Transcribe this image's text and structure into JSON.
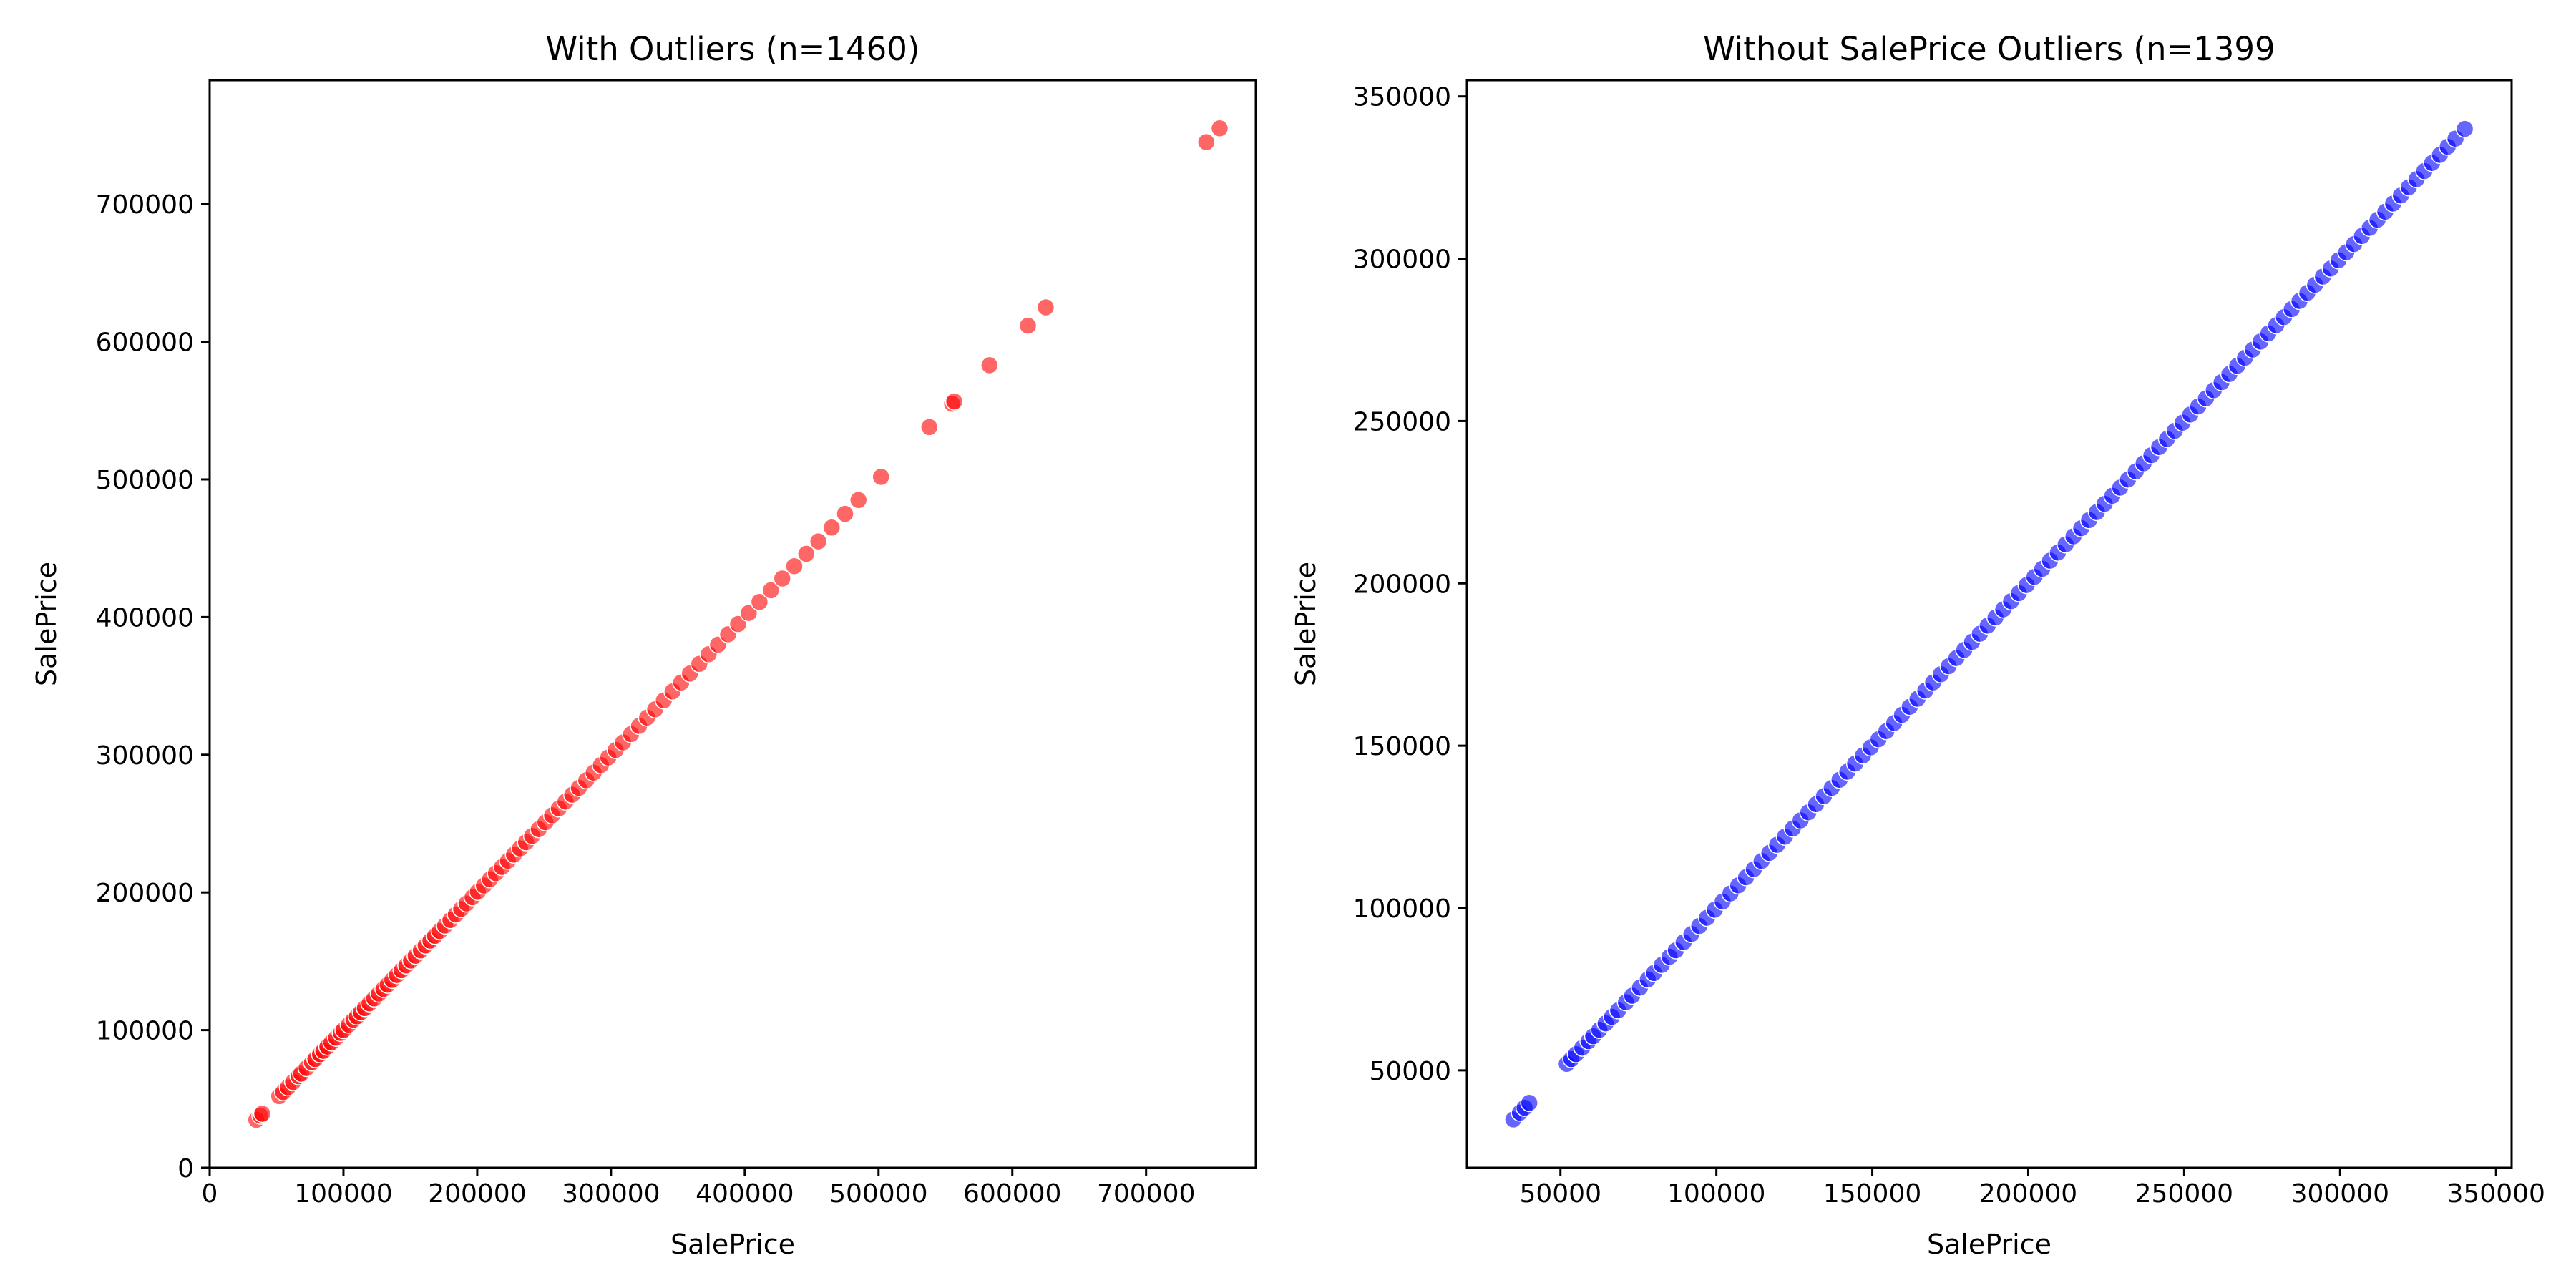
{
  "chart_data": [
    {
      "type": "scatter",
      "title": "With Outliers (n=1460)",
      "xlabel": "SalePrice",
      "ylabel": "SalePrice",
      "xlim": [
        0,
        782000
      ],
      "ylim": [
        0,
        790000
      ],
      "xticks": [
        0,
        100000,
        200000,
        300000,
        400000,
        500000,
        600000,
        700000
      ],
      "yticks": [
        0,
        100000,
        200000,
        300000,
        400000,
        500000,
        600000,
        700000
      ],
      "xtick_labels": [
        "0",
        "100000",
        "200000",
        "300000",
        "400000",
        "500000",
        "600000",
        "700000"
      ],
      "ytick_labels": [
        "0",
        "100000",
        "200000",
        "300000",
        "400000",
        "500000",
        "600000",
        "700000"
      ],
      "color": "#ff0000",
      "series": [
        {
          "x": [
            34900,
            37900,
            39300,
            52000,
            55000,
            58500,
            62383,
            66500,
            68400,
            72500,
            76500,
            79000,
            82500,
            85000,
            88000,
            91000,
            94500,
            98000,
            100000,
            104000,
            107500,
            110000,
            113000,
            116000,
            119500,
            123000,
            126500,
            129900,
            133000,
            136500,
            140000,
            143500,
            147000,
            150500,
            154000,
            157900,
            161500,
            165000,
            168500,
            172000,
            176000,
            180000,
            184000,
            188000,
            192000,
            196500,
            200500,
            205000,
            209500,
            214000,
            218500,
            223000,
            227500,
            232000,
            236500,
            241000,
            246000,
            251000,
            256000,
            261000,
            266000,
            271000,
            276000,
            281500,
            287000,
            292500,
            298000,
            303500,
            309000,
            315000,
            321000,
            327000,
            333000,
            339500,
            346000,
            352500,
            359000,
            366000,
            373000,
            380000,
            387500,
            395000,
            403000,
            411000,
            419500,
            428000,
            437000,
            446000,
            455000,
            465000,
            475000,
            485000,
            501837,
            538000,
            555000,
            556581,
            582933,
            611657,
            625000,
            745000,
            755000
          ],
          "y": [
            34900,
            37900,
            39300,
            52000,
            55000,
            58500,
            62383,
            66500,
            68400,
            72500,
            76500,
            79000,
            82500,
            85000,
            88000,
            91000,
            94500,
            98000,
            100000,
            104000,
            107500,
            110000,
            113000,
            116000,
            119500,
            123000,
            126500,
            129900,
            133000,
            136500,
            140000,
            143500,
            147000,
            150500,
            154000,
            157900,
            161500,
            165000,
            168500,
            172000,
            176000,
            180000,
            184000,
            188000,
            192000,
            196500,
            200500,
            205000,
            209500,
            214000,
            218500,
            223000,
            227500,
            232000,
            236500,
            241000,
            246000,
            251000,
            256000,
            261000,
            266000,
            271000,
            276000,
            281500,
            287000,
            292500,
            298000,
            303500,
            309000,
            315000,
            321000,
            327000,
            333000,
            339500,
            346000,
            352500,
            359000,
            366000,
            373000,
            380000,
            387500,
            395000,
            403000,
            411000,
            419500,
            428000,
            437000,
            446000,
            455000,
            465000,
            475000,
            485000,
            501837,
            538000,
            555000,
            556581,
            582933,
            611657,
            625000,
            745000,
            755000
          ]
        }
      ]
    },
    {
      "type": "scatter",
      "title": "Without SalePrice Outliers (n=1399",
      "xlabel": "SalePrice",
      "ylabel": "SalePrice",
      "xlim": [
        20000,
        355000
      ],
      "ylim": [
        20000,
        355000
      ],
      "xticks": [
        50000,
        100000,
        150000,
        200000,
        250000,
        300000,
        350000
      ],
      "yticks": [
        50000,
        100000,
        150000,
        200000,
        250000,
        300000,
        350000
      ],
      "xtick_labels": [
        "50000",
        "100000",
        "150000",
        "200000",
        "250000",
        "300000",
        "350000"
      ],
      "ytick_labels": [
        "50000",
        "100000",
        "150000",
        "200000",
        "250000",
        "300000",
        "350000"
      ],
      "color": "#0000ff",
      "series": [
        {
          "x": [
            34900,
            37000,
            38500,
            40000,
            52000,
            53500,
            55000,
            57000,
            59000,
            60500,
            62500,
            64500,
            66500,
            68500,
            71000,
            73000,
            75500,
            78000,
            80000,
            82500,
            85000,
            87000,
            89500,
            92000,
            94500,
            97000,
            99500,
            102000,
            104500,
            107000,
            109500,
            112000,
            114500,
            117000,
            119500,
            122000,
            124500,
            127000,
            129500,
            132000,
            134500,
            137000,
            139500,
            142000,
            144500,
            147000,
            149500,
            152000,
            154500,
            157000,
            159500,
            162000,
            164500,
            167000,
            169500,
            172000,
            174500,
            177000,
            179500,
            182000,
            184500,
            187000,
            189500,
            192000,
            194500,
            197000,
            199500,
            202000,
            204500,
            207000,
            209500,
            212000,
            214500,
            217000,
            219500,
            222000,
            224500,
            227000,
            229500,
            232000,
            234500,
            237000,
            239500,
            242000,
            244500,
            247000,
            249500,
            252000,
            254500,
            257000,
            259500,
            262000,
            264500,
            267000,
            269500,
            272000,
            274500,
            277000,
            279500,
            282000,
            284500,
            287000,
            289500,
            292000,
            294500,
            297000,
            299500,
            302000,
            304500,
            307000,
            309500,
            312000,
            314500,
            317000,
            319500,
            322000,
            324500,
            327000,
            329500,
            332000,
            334500,
            337000,
            340000
          ],
          "y": [
            34900,
            37000,
            38500,
            40000,
            52000,
            53500,
            55000,
            57000,
            59000,
            60500,
            62500,
            64500,
            66500,
            68500,
            71000,
            73000,
            75500,
            78000,
            80000,
            82500,
            85000,
            87000,
            89500,
            92000,
            94500,
            97000,
            99500,
            102000,
            104500,
            107000,
            109500,
            112000,
            114500,
            117000,
            119500,
            122000,
            124500,
            127000,
            129500,
            132000,
            134500,
            137000,
            139500,
            142000,
            144500,
            147000,
            149500,
            152000,
            154500,
            157000,
            159500,
            162000,
            164500,
            167000,
            169500,
            172000,
            174500,
            177000,
            179500,
            182000,
            184500,
            187000,
            189500,
            192000,
            194500,
            197000,
            199500,
            202000,
            204500,
            207000,
            209500,
            212000,
            214500,
            217000,
            219500,
            222000,
            224500,
            227000,
            229500,
            232000,
            234500,
            237000,
            239500,
            242000,
            244500,
            247000,
            249500,
            252000,
            254500,
            257000,
            259500,
            262000,
            264500,
            267000,
            269500,
            272000,
            274500,
            277000,
            279500,
            282000,
            284500,
            287000,
            289500,
            292000,
            294500,
            297000,
            299500,
            302000,
            304500,
            307000,
            309500,
            312000,
            314500,
            317000,
            319500,
            322000,
            324500,
            327000,
            329500,
            332000,
            334500,
            337000,
            340000
          ]
        }
      ]
    }
  ]
}
